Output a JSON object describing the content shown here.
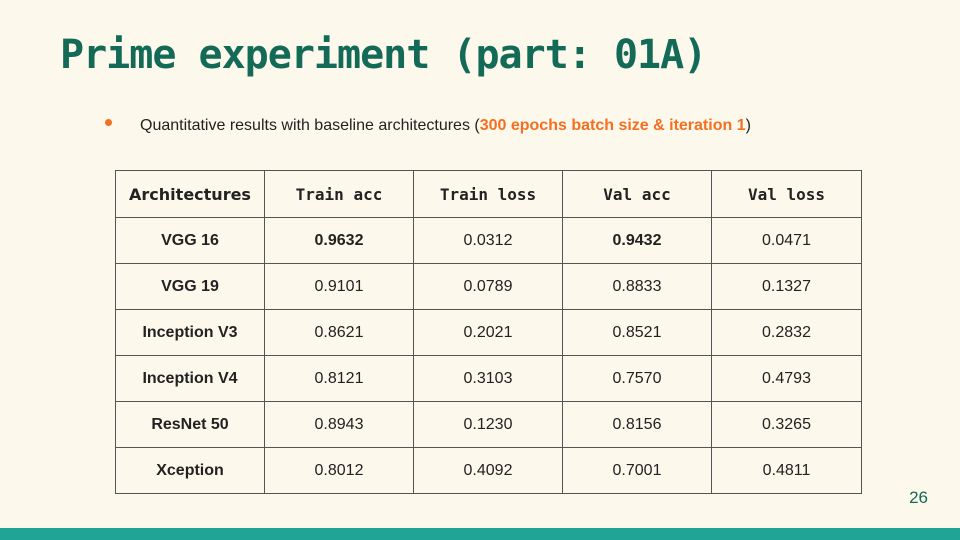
{
  "slide": {
    "title": "Prime experiment (part: 01A)",
    "bullet": {
      "text_before": "Quantitative results with baseline architectures (",
      "highlight": "300 epochs batch size & iteration 1",
      "text_after": ")"
    },
    "page_number": "26",
    "colors": {
      "title": "#136a57",
      "accent": "#f36f21",
      "header": "#1e3e8a",
      "bar": "#1fa496"
    }
  },
  "table": {
    "headers": [
      "Architectures",
      "Train acc",
      "Train loss",
      "Val acc",
      "Val loss"
    ],
    "rows": [
      {
        "arch": "VGG 16",
        "train_acc": "0.9632",
        "train_loss": "0.0312",
        "val_acc": "0.9432",
        "val_loss": "0.0471"
      },
      {
        "arch": "VGG 19",
        "train_acc": "0.9101",
        "train_loss": "0.0789",
        "val_acc": "0.8833",
        "val_loss": "0.1327"
      },
      {
        "arch": "Inception V3",
        "train_acc": "0.8621",
        "train_loss": "0.2021",
        "val_acc": "0.8521",
        "val_loss": "0.2832"
      },
      {
        "arch": "Inception V4",
        "train_acc": "0.8121",
        "train_loss": "0.3103",
        "val_acc": "0.7570",
        "val_loss": "0.4793"
      },
      {
        "arch": "ResNet 50",
        "train_acc": "0.8943",
        "train_loss": "0.1230",
        "val_acc": "0.8156",
        "val_loss": "0.3265"
      },
      {
        "arch": "Xception",
        "train_acc": "0.8012",
        "train_loss": "0.4092",
        "val_acc": "0.7001",
        "val_loss": "0.4811"
      }
    ]
  }
}
